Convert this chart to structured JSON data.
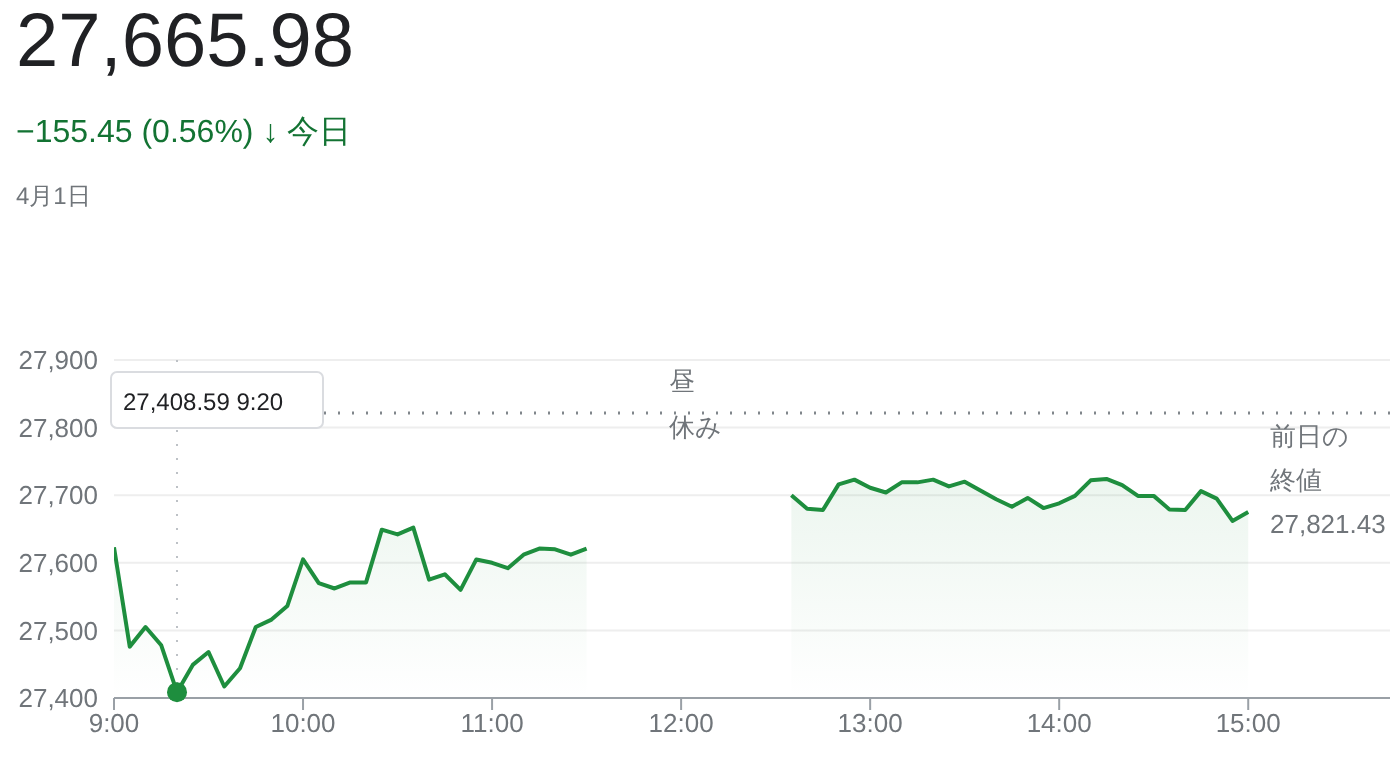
{
  "chart_data": {
    "type": "area",
    "title": "27,665.98",
    "subtitle": "−155.45 (0.56%) ↓ 今日",
    "series": [
      {
        "color": "#1e8e3e",
        "x": [
          9,
          9.0833,
          9.1667,
          9.25,
          9.3333,
          9.4167,
          9.5,
          9.5833,
          9.6667,
          9.75,
          9.8333,
          9.9167,
          10,
          10.0833,
          10.1667,
          10.25,
          10.3333,
          10.4167,
          10.5,
          10.5833,
          10.6667,
          10.75,
          10.8333,
          10.9167,
          11,
          11.0833,
          11.1667,
          11.25,
          11.3333,
          11.4167,
          11.5,
          12,
          12.5833,
          12.6667,
          12.75,
          12.8333,
          12.9167,
          13,
          13.0833,
          13.1667,
          13.25,
          13.3333,
          13.4167,
          13.5,
          13.5833,
          13.6667,
          13.75,
          13.8333,
          13.9167,
          14,
          14.0833,
          14.1667,
          14.25,
          14.3333,
          14.4167,
          14.5,
          14.5833,
          14.6667,
          14.75,
          14.8333,
          14.9167,
          15
        ],
        "values": [
          27623,
          27476,
          27505,
          27478,
          27408.59,
          27449,
          27468,
          27417,
          27444,
          27505,
          27516,
          27536,
          27605,
          27570,
          27562,
          27571,
          27571,
          27649,
          27642,
          27652,
          27575,
          27583,
          27560,
          27605,
          27600,
          27592,
          27612,
          27621,
          27620,
          27612,
          27621,
          null,
          27700,
          27680,
          27678,
          27716,
          27723,
          27711,
          27704,
          27719,
          27719,
          27723,
          27713,
          27720,
          27707,
          27694,
          27683,
          27696,
          27681,
          27688,
          27699,
          27722,
          27724,
          27715,
          27699,
          27699,
          27679,
          27678,
          27706,
          27695,
          27662,
          27675
        ]
      }
    ],
    "xlim": [
      9,
      15.75
    ],
    "xticks": [
      {
        "value": 9,
        "label": "9:00"
      },
      {
        "value": 10,
        "label": "10:00"
      },
      {
        "value": 11,
        "label": "11:00"
      },
      {
        "value": 12,
        "label": "12:00"
      },
      {
        "value": 13,
        "label": "13:00"
      },
      {
        "value": 14,
        "label": "14:00"
      },
      {
        "value": 15,
        "label": "15:00"
      }
    ],
    "ylim": [
      27400,
      27900
    ],
    "yticks": [
      {
        "value": 27400,
        "label": "27,400"
      },
      {
        "value": 27500,
        "label": "27,500"
      },
      {
        "value": 27600,
        "label": "27,600"
      },
      {
        "value": 27700,
        "label": "27,700"
      },
      {
        "value": 27800,
        "label": "27,800"
      },
      {
        "value": 27900,
        "label": "27,900"
      }
    ],
    "grid": "y",
    "ref_lines": [
      {
        "axis": "y",
        "value": 27821.43,
        "label": "前日の終値27,821.43",
        "color": "#80868b",
        "line_style": "dotted"
      },
      {
        "axis": "x",
        "value": 9.3333,
        "label": null,
        "color": "#bdc1c6",
        "line_style": "dotted"
      }
    ],
    "annotations": [
      "4月1日",
      "昼休み",
      "27,408.59 9:20"
    ]
  }
}
